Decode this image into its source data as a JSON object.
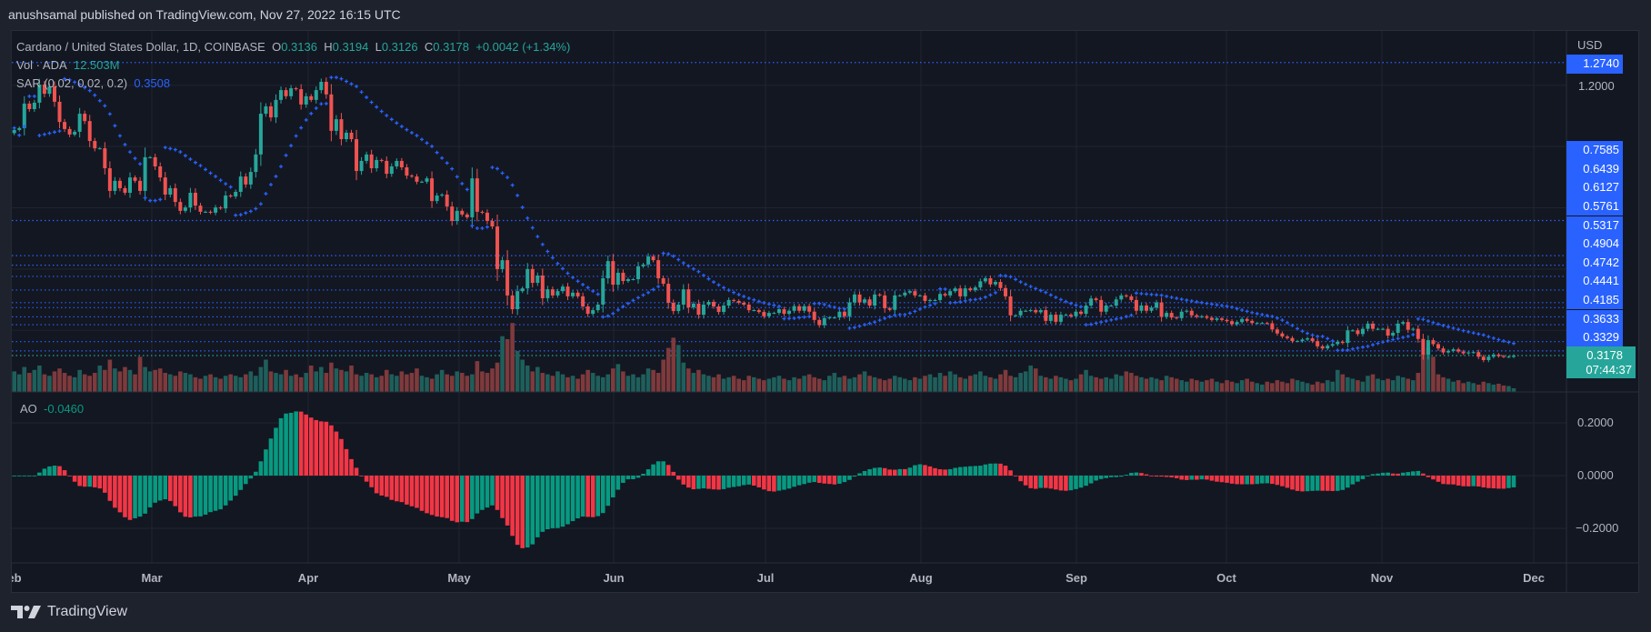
{
  "header": {
    "published": "anushsamal published on TradingView.com, Nov 27, 2022 16:15 UTC"
  },
  "legend": {
    "symbol": "Cardano / United States Dollar, 1D, COINBASE",
    "o_label": "O",
    "open": "0.3136",
    "h_label": "H",
    "high": "0.3194",
    "l_label": "L",
    "low": "0.3126",
    "c_label": "C",
    "close": "0.3178",
    "change": "+0.0042 (+1.34%)",
    "vol_label": "Vol · ADA",
    "vol_value": "12.503M",
    "sar_label": "SAR (0.02, 0.02, 0.2)",
    "sar_value": "0.3508"
  },
  "price_axis": {
    "currency": "USD",
    "tick": "1.2000",
    "top_level": "1.2740",
    "levels": [
      "0.7585",
      "0.6439",
      "0.6127",
      "0.5761",
      "0.5317",
      "0.4904",
      "0.4742",
      "0.4441",
      "0.4185",
      "0.3633",
      "0.3329"
    ],
    "current_price": "0.3178",
    "countdown": "07:44:37"
  },
  "ao": {
    "label": "AO",
    "value": "-0.0460",
    "ticks": [
      "0.2000",
      "0.0000",
      "−0.2000"
    ]
  },
  "time_axis": {
    "months": [
      "Feb",
      "Mar",
      "Apr",
      "May",
      "Jun",
      "Jul",
      "Aug",
      "Sep",
      "Oct",
      "Nov",
      "Dec"
    ]
  },
  "footer": {
    "logo_text": "TradingView"
  },
  "colors": {
    "up": "#26a69a",
    "down": "#ef5350",
    "vol_up": "#1f5f5b",
    "vol_down": "#7e3a3c",
    "ao_up": "#089981",
    "ao_down": "#f23645",
    "sar": "#2962ff",
    "level": "#2962ff",
    "background": "#131722"
  },
  "chart_data": {
    "type": "candlestick",
    "symbol": "ADA/USD",
    "interval": "1D",
    "ylim": [
      0.2,
      1.38
    ],
    "y_scale": "linear",
    "grid": true,
    "price_levels": [
      1.274,
      0.7585,
      0.6439,
      0.6127,
      0.5761,
      0.5317,
      0.4904,
      0.4742,
      0.4441,
      0.4185,
      0.3633,
      0.3329
    ],
    "sar_params": [
      0.02,
      0.02,
      0.2
    ],
    "ao_ylim": [
      -0.33,
      0.33
    ],
    "closes": [
      1.054,
      1.06,
      1.14,
      1.122,
      1.143,
      1.202,
      1.172,
      1.196,
      1.146,
      1.08,
      1.057,
      1.039,
      1.048,
      1.107,
      1.083,
      1.018,
      0.994,
      0.994,
      0.929,
      0.855,
      0.888,
      0.864,
      0.849,
      0.899,
      0.888,
      0.855,
      0.965,
      0.965,
      0.935,
      0.899,
      0.843,
      0.864,
      0.819,
      0.79,
      0.801,
      0.849,
      0.807,
      0.787,
      0.787,
      0.784,
      0.801,
      0.798,
      0.84,
      0.837,
      0.852,
      0.902,
      0.876,
      0.917,
      0.974,
      1.107,
      1.131,
      1.095,
      1.152,
      1.184,
      1.164,
      1.19,
      1.187,
      1.137,
      1.164,
      1.152,
      1.184,
      1.211,
      1.17,
      1.051,
      1.089,
      1.024,
      1.045,
      1.024,
      0.92,
      0.953,
      0.974,
      0.929,
      0.956,
      0.953,
      0.911,
      0.935,
      0.953,
      0.932,
      0.905,
      0.902,
      0.885,
      0.885,
      0.896,
      0.822,
      0.84,
      0.843,
      0.804,
      0.757,
      0.79,
      0.778,
      0.769,
      0.896,
      0.787,
      0.784,
      0.757,
      0.739,
      0.6,
      0.629,
      0.514,
      0.469,
      0.528,
      0.537,
      0.6,
      0.555,
      0.579,
      0.505,
      0.534,
      0.514,
      0.528,
      0.543,
      0.511,
      0.523,
      0.511,
      0.478,
      0.454,
      0.466,
      0.484,
      0.57,
      0.626,
      0.549,
      0.588,
      0.561,
      0.567,
      0.567,
      0.609,
      0.615,
      0.641,
      0.629,
      0.57,
      0.552,
      0.49,
      0.463,
      0.484,
      0.534,
      0.475,
      0.487,
      0.451,
      0.484,
      0.493,
      0.478,
      0.46,
      0.481,
      0.499,
      0.496,
      0.49,
      0.484,
      0.466,
      0.466,
      0.46,
      0.446,
      0.457,
      0.457,
      0.469,
      0.454,
      0.464,
      0.479,
      0.464,
      0.479,
      0.461,
      0.434,
      0.417,
      0.44,
      0.442,
      0.442,
      0.461,
      0.446,
      0.491,
      0.517,
      0.491,
      0.501,
      0.481,
      0.517,
      0.514,
      0.472,
      0.467,
      0.514,
      0.514,
      0.523,
      0.528,
      0.514,
      0.514,
      0.496,
      0.499,
      0.499,
      0.519,
      0.514,
      0.528,
      0.537,
      0.511,
      0.537,
      0.531,
      0.54,
      0.56,
      0.57,
      0.55,
      0.558,
      0.538,
      0.511,
      0.449,
      0.449,
      0.464,
      0.464,
      0.466,
      0.459,
      0.466,
      0.431,
      0.451,
      0.428,
      0.451,
      0.451,
      0.446,
      0.461,
      0.454,
      0.481,
      0.504,
      0.499,
      0.461,
      0.481,
      0.481,
      0.501,
      0.514,
      0.511,
      0.499,
      0.464,
      0.481,
      0.464,
      0.474,
      0.491,
      0.444,
      0.457,
      0.442,
      0.44,
      0.461,
      0.464,
      0.449,
      0.444,
      0.446,
      0.441,
      0.434,
      0.439,
      0.434,
      0.43,
      0.42,
      0.427,
      0.437,
      0.431,
      0.424,
      0.424,
      0.424,
      0.423,
      0.403,
      0.39,
      0.38,
      0.375,
      0.365,
      0.365,
      0.37,
      0.374,
      0.365,
      0.348,
      0.341,
      0.35,
      0.355,
      0.363,
      0.359,
      0.4,
      0.4,
      0.388,
      0.405,
      0.422,
      0.405,
      0.405,
      0.405,
      0.383,
      0.392,
      0.422,
      0.427,
      0.402,
      0.405,
      0.372,
      0.321,
      0.368,
      0.355,
      0.341,
      0.328,
      0.333,
      0.338,
      0.331,
      0.325,
      0.328,
      0.329,
      0.314,
      0.303,
      0.314,
      0.321,
      0.316,
      0.314,
      0.314,
      0.3178
    ],
    "volume_millions": [
      70,
      60,
      85,
      65,
      75,
      90,
      60,
      55,
      70,
      80,
      65,
      55,
      50,
      75,
      60,
      55,
      65,
      90,
      75,
      110,
      80,
      70,
      85,
      75,
      60,
      120,
      85,
      70,
      75,
      80,
      65,
      60,
      55,
      70,
      65,
      60,
      50,
      45,
      55,
      60,
      50,
      45,
      55,
      60,
      55,
      50,
      60,
      70,
      55,
      85,
      110,
      70,
      65,
      60,
      75,
      55,
      60,
      50,
      65,
      90,
      70,
      85,
      65,
      100,
      80,
      75,
      70,
      90,
      60,
      55,
      65,
      60,
      50,
      55,
      75,
      60,
      55,
      70,
      60,
      65,
      80,
      55,
      50,
      45,
      60,
      75,
      60,
      55,
      70,
      65,
      55,
      60,
      105,
      70,
      65,
      80,
      100,
      190,
      180,
      235,
      140,
      110,
      90,
      70,
      85,
      65,
      60,
      55,
      70,
      60,
      50,
      55,
      45,
      60,
      75,
      65,
      55,
      50,
      60,
      80,
      95,
      70,
      55,
      60,
      50,
      60,
      80,
      75,
      65,
      110,
      150,
      185,
      160,
      100,
      80,
      65,
      75,
      60,
      55,
      50,
      60,
      45,
      50,
      55,
      45,
      40,
      55,
      50,
      45,
      40,
      45,
      50,
      55,
      45,
      40,
      50,
      45,
      55,
      60,
      50,
      45,
      40,
      55,
      65,
      50,
      55,
      45,
      50,
      60,
      70,
      55,
      50,
      45,
      40,
      45,
      55,
      50,
      45,
      40,
      50,
      45,
      55,
      60,
      50,
      65,
      55,
      70,
      60,
      50,
      45,
      55,
      60,
      70,
      55,
      50,
      45,
      60,
      75,
      55,
      50,
      65,
      70,
      90,
      80,
      55,
      50,
      45,
      55,
      50,
      45,
      40,
      45,
      60,
      75,
      55,
      50,
      45,
      50,
      45,
      60,
      55,
      70,
      65,
      55,
      50,
      45,
      50,
      45,
      40,
      55,
      50,
      45,
      40,
      35,
      45,
      40,
      35,
      40,
      45,
      35,
      30,
      40,
      35,
      30,
      40,
      45,
      35,
      30,
      25,
      35,
      30,
      40,
      35,
      30,
      45,
      40,
      35,
      30,
      25,
      35,
      30,
      40,
      35,
      75,
      60,
      50,
      45,
      40,
      35,
      55,
      60,
      45,
      40,
      45,
      40,
      55,
      50,
      45,
      40,
      65,
      130,
      150,
      120,
      60,
      50,
      45,
      35,
      40,
      30,
      35,
      30,
      25,
      35,
      30,
      25,
      28,
      22,
      20,
      12.503
    ]
  }
}
